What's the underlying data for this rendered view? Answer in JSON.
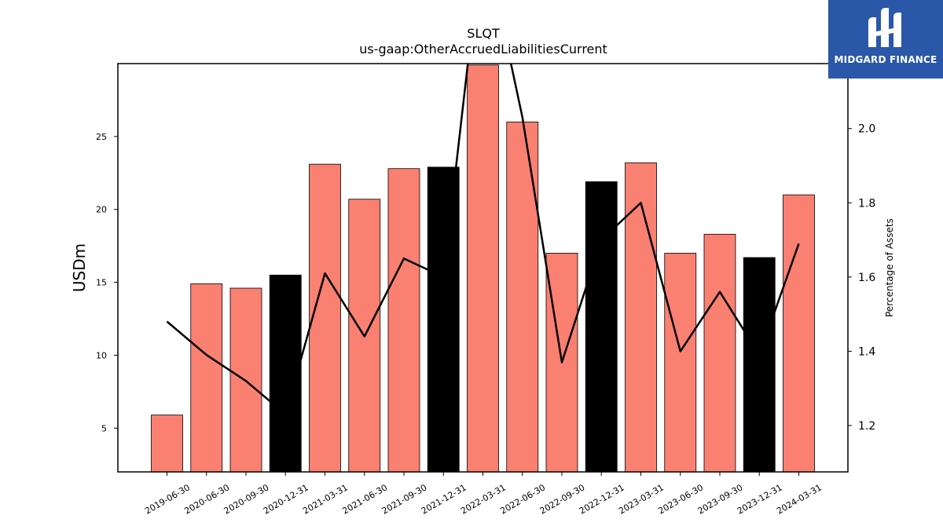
{
  "chart_data": {
    "type": "bar",
    "title": "SLQT",
    "subtitle": "us-gaap:OtherAccruedLiabilitiesCurrent",
    "ylabel": "USDm",
    "y2label": "Percentage of Assets",
    "categories": [
      "2019-06-30",
      "2020-06-30",
      "2020-09-30",
      "2020-12-31",
      "2021-03-31",
      "2021-06-30",
      "2021-09-30",
      "2021-12-31",
      "2022-03-31",
      "2022-06-30",
      "2022-09-30",
      "2022-12-31",
      "2023-03-31",
      "2023-06-30",
      "2023-09-30",
      "2023-12-31",
      "2024-03-31"
    ],
    "series": [
      {
        "type": "bar",
        "values": [
          5.9,
          14.9,
          14.6,
          15.5,
          23.1,
          20.7,
          22.8,
          22.9,
          29.9,
          26.0,
          17.0,
          21.9,
          23.2,
          17.0,
          18.3,
          16.7,
          21.0
        ]
      },
      {
        "type": "line",
        "axis": "right",
        "values": [
          1.48,
          1.39,
          1.32,
          1.23,
          1.61,
          1.44,
          1.65,
          1.6,
          2.53,
          2.03,
          1.37,
          1.7,
          1.8,
          1.4,
          1.56,
          1.39,
          1.69
        ]
      }
    ],
    "bar_colors": {
      "default": "#fa8072",
      "year_end": "#000000"
    },
    "year_end_categories": [
      "2020-12-31",
      "2021-12-31",
      "2022-12-31",
      "2023-12-31"
    ],
    "ylim": [
      2.0,
      30.0
    ],
    "y2lim": [
      1.075,
      2.175
    ],
    "yticks": [
      5,
      10,
      15,
      20,
      25
    ],
    "y2ticks": [
      1.2,
      1.4,
      1.6,
      1.8,
      2.0
    ],
    "grid": false,
    "legend": "none"
  },
  "logo": {
    "text": "MIDGARD FINANCE",
    "icon": "midgard-logo-icon",
    "background": "#2b57a8"
  }
}
